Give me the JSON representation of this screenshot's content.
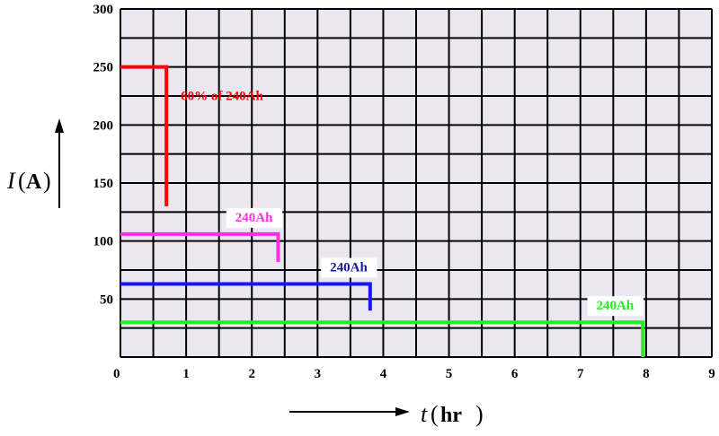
{
  "chart_data": {
    "type": "line",
    "x_axis": {
      "symbol": "t",
      "unit": "hr",
      "range": [
        0,
        9
      ],
      "ticks": [
        "0",
        "1",
        "2",
        "3",
        "4",
        "5",
        "6",
        "7",
        "8",
        "9"
      ]
    },
    "y_axis": {
      "symbol": "I",
      "unit": "A",
      "range": [
        0,
        300
      ],
      "ticks": [
        "50",
        "100",
        "150",
        "200",
        "250",
        "300"
      ]
    },
    "grid": true,
    "series": [
      {
        "label": "60% of 240Ah",
        "color": "#ff0000",
        "label_color": "#ff0000",
        "points": [
          [
            0,
            250
          ],
          [
            0.7,
            250
          ],
          [
            0.7,
            130
          ]
        ]
      },
      {
        "label": "240Ah",
        "color": "#ff2ee0",
        "label_color": "#ff2ee0",
        "points": [
          [
            0,
            106
          ],
          [
            2.4,
            106
          ],
          [
            2.4,
            82
          ]
        ]
      },
      {
        "label": "240Ah",
        "color": "#1515ff",
        "label_color": "#1a1aa0",
        "points": [
          [
            0,
            63
          ],
          [
            3.8,
            63
          ],
          [
            3.8,
            40
          ]
        ]
      },
      {
        "label": "240Ah",
        "color": "#22ee22",
        "label_color": "#22ee22",
        "points": [
          [
            0,
            30
          ],
          [
            7.95,
            30
          ],
          [
            7.95,
            0
          ]
        ]
      }
    ]
  }
}
